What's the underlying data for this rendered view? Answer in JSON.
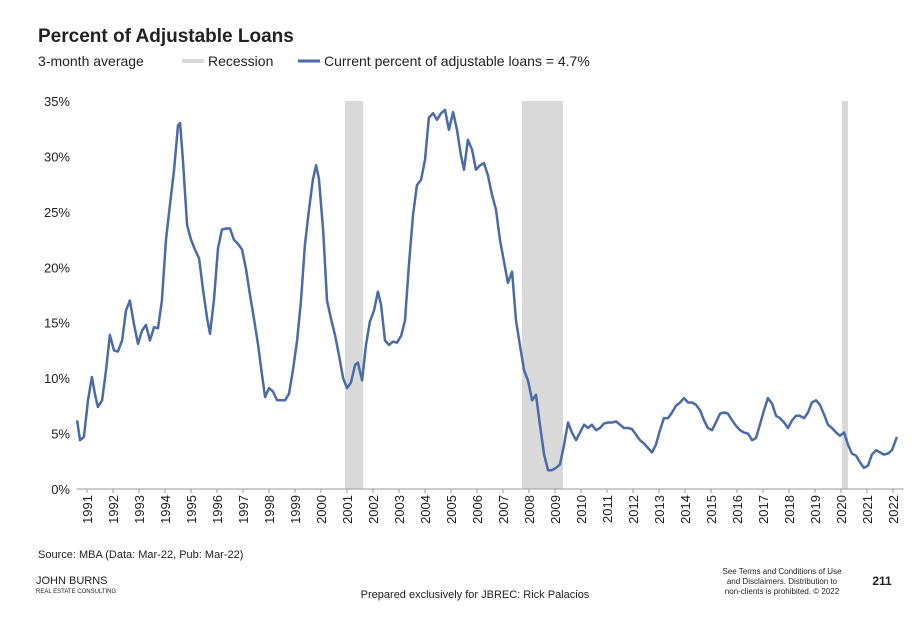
{
  "chart_data": {
    "type": "line",
    "title": "Percent of Adjustable Loans",
    "subtitle": "3-month average",
    "recession_label": "Recession",
    "recession_color": "#d9d9d9",
    "recessions": [
      [
        2000.92,
        2001.62
      ],
      [
        2007.73,
        2009.31
      ],
      [
        2020.04,
        2020.27
      ]
    ],
    "xlim": [
      1990.6,
      2022.4
    ],
    "xticks": [
      1991,
      1992,
      1993,
      1994,
      1995,
      1996,
      1997,
      1998,
      1999,
      2000,
      2001,
      2002,
      2003,
      2004,
      2005,
      2006,
      2007,
      2008,
      2009,
      2010,
      2011,
      2012,
      2013,
      2014,
      2015,
      2016,
      2017,
      2018,
      2019,
      2020,
      2021,
      2022
    ],
    "ylim": [
      0,
      35
    ],
    "yticks": [
      {
        "value": 0,
        "label": "0%"
      },
      {
        "value": 5,
        "label": "5%"
      },
      {
        "value": 10,
        "label": "10%"
      },
      {
        "value": 15,
        "label": "15%"
      },
      {
        "value": 20,
        "label": "20%"
      },
      {
        "value": 25,
        "label": "25%"
      },
      {
        "value": 30,
        "label": "30%"
      },
      {
        "value": 35,
        "label": "35%"
      }
    ],
    "grid": false,
    "x": [
      1990.62,
      1990.73,
      1990.88,
      1991.04,
      1991.19,
      1991.31,
      1991.42,
      1991.58,
      1991.73,
      1991.88,
      1992.04,
      1992.19,
      1992.35,
      1992.5,
      1992.65,
      1992.81,
      1992.96,
      1993.12,
      1993.27,
      1993.42,
      1993.58,
      1993.73,
      1993.88,
      1994.04,
      1994.19,
      1994.35,
      1994.5,
      1994.58,
      1994.69,
      1994.85,
      1995.0,
      1995.15,
      1995.31,
      1995.46,
      1995.62,
      1995.73,
      1995.88,
      1996.04,
      1996.19,
      1996.35,
      1996.5,
      1996.65,
      1996.81,
      1996.96,
      1997.12,
      1997.27,
      1997.42,
      1997.58,
      1997.73,
      1997.85,
      1998.0,
      1998.15,
      1998.31,
      1998.46,
      1998.62,
      1998.77,
      1998.92,
      1999.08,
      1999.23,
      1999.38,
      1999.54,
      1999.69,
      1999.81,
      1999.92,
      2000.08,
      2000.23,
      2000.38,
      2000.54,
      2000.69,
      2000.85,
      2001.0,
      2001.15,
      2001.31,
      2001.42,
      2001.58,
      2001.73,
      2001.88,
      2002.04,
      2002.19,
      2002.31,
      2002.46,
      2002.62,
      2002.77,
      2002.92,
      2003.08,
      2003.23,
      2003.38,
      2003.54,
      2003.69,
      2003.85,
      2004.0,
      2004.15,
      2004.31,
      2004.46,
      2004.62,
      2004.77,
      2004.92,
      2005.08,
      2005.23,
      2005.38,
      2005.5,
      2005.65,
      2005.81,
      2005.96,
      2006.12,
      2006.27,
      2006.42,
      2006.58,
      2006.73,
      2006.88,
      2007.04,
      2007.19,
      2007.35,
      2007.5,
      2007.65,
      2007.81,
      2007.96,
      2008.12,
      2008.27,
      2008.42,
      2008.58,
      2008.73,
      2008.88,
      2009.04,
      2009.19,
      2009.35,
      2009.5,
      2009.65,
      2009.81,
      2009.96,
      2010.12,
      2010.27,
      2010.42,
      2010.58,
      2010.73,
      2010.88,
      2011.04,
      2011.19,
      2011.35,
      2011.5,
      2011.65,
      2011.81,
      2011.96,
      2012.12,
      2012.27,
      2012.42,
      2012.58,
      2012.73,
      2012.88,
      2013.04,
      2013.19,
      2013.35,
      2013.5,
      2013.65,
      2013.81,
      2013.96,
      2014.12,
      2014.27,
      2014.42,
      2014.58,
      2014.73,
      2014.88,
      2015.04,
      2015.19,
      2015.35,
      2015.5,
      2015.65,
      2015.81,
      2015.96,
      2016.12,
      2016.27,
      2016.42,
      2016.58,
      2016.73,
      2016.88,
      2017.04,
      2017.19,
      2017.35,
      2017.5,
      2017.65,
      2017.81,
      2017.96,
      2018.12,
      2018.27,
      2018.42,
      2018.58,
      2018.73,
      2018.88,
      2019.04,
      2019.19,
      2019.35,
      2019.5,
      2019.65,
      2019.81,
      2019.96,
      2020.12,
      2020.27,
      2020.42,
      2020.58,
      2020.73,
      2020.88,
      2021.04,
      2021.19,
      2021.35,
      2021.5,
      2021.65,
      2021.81,
      2021.96,
      2022.15
    ],
    "series": [
      {
        "name": "Current percent of adjustable loans = 4.7%",
        "color": "#4a6aa8",
        "values": [
          6.2,
          4.4,
          4.7,
          8,
          10.1,
          8.5,
          7.4,
          8,
          10.7,
          13.9,
          12.5,
          12.4,
          13.4,
          16.1,
          17,
          14.8,
          13.1,
          14.3,
          14.8,
          13.4,
          14.6,
          14.5,
          17,
          22.5,
          25.6,
          28.8,
          32.8,
          33,
          29.7,
          23.8,
          22.5,
          21.6,
          20.8,
          18,
          15.4,
          14,
          17,
          21.7,
          23.4,
          23.5,
          23.5,
          22.5,
          22.1,
          21.6,
          19.8,
          17.5,
          15.4,
          13,
          10.3,
          8.3,
          9.1,
          8.8,
          8,
          8,
          8,
          8.6,
          10.7,
          13.4,
          17,
          22,
          25.2,
          27.9,
          29.2,
          28,
          23.4,
          17,
          15.4,
          13.9,
          12.1,
          10,
          9.1,
          9.6,
          11.2,
          11.4,
          9.8,
          13,
          15.1,
          16.1,
          17.8,
          16.6,
          13.4,
          13,
          13.3,
          13.2,
          13.8,
          15.2,
          20.2,
          24.7,
          27.4,
          27.9,
          29.7,
          33.5,
          33.9,
          33.3,
          33.9,
          34.2,
          32.4,
          34,
          32.4,
          30.1,
          28.8,
          31.5,
          30.6,
          28.8,
          29.2,
          29.4,
          28.3,
          26.5,
          25.2,
          22.5,
          20.5,
          18.6,
          19.6,
          15.2,
          13,
          10.7,
          9.8,
          8,
          8.5,
          5.8,
          3.1,
          1.7,
          1.7,
          1.9,
          2.2,
          4,
          6,
          5.1,
          4.4,
          5.1,
          5.8,
          5.5,
          5.8,
          5.3,
          5.5,
          5.9,
          6,
          6,
          6.1,
          5.8,
          5.5,
          5.5,
          5.4,
          4.9,
          4.4,
          4.1,
          3.7,
          3.3,
          4,
          5.3,
          6.4,
          6.4,
          6.9,
          7.5,
          7.8,
          8.2,
          7.8,
          7.8,
          7.6,
          7.1,
          6.2,
          5.5,
          5.3,
          6,
          6.8,
          6.9,
          6.8,
          6.2,
          5.7,
          5.3,
          5.1,
          5,
          4.4,
          4.6,
          5.8,
          7.1,
          8.2,
          7.7,
          6.6,
          6.4,
          6,
          5.5,
          6.2,
          6.6,
          6.6,
          6.4,
          6.9,
          7.8,
          8,
          7.6,
          6.7,
          5.8,
          5.5,
          5.1,
          4.8,
          5.1,
          4,
          3.2,
          3,
          2.4,
          1.9,
          2.1,
          3.1,
          3.5,
          3.3,
          3.1,
          3.2,
          3.5,
          4.7
        ]
      }
    ],
    "source": "Source: MBA (Data: Mar-22, Pub: Mar-22)",
    "logo_top": "JOHN BURNS",
    "logo_bottom": "REAL ESTATE CONSULTING",
    "prepared": "Prepared exclusively for JBREC: Rick Palacios",
    "disclaimer": [
      "See Terms and Conditions of Use",
      "and Disclaimers. Distribution to",
      "non-clients is prohibited. © 2022"
    ],
    "page_number": "211"
  }
}
